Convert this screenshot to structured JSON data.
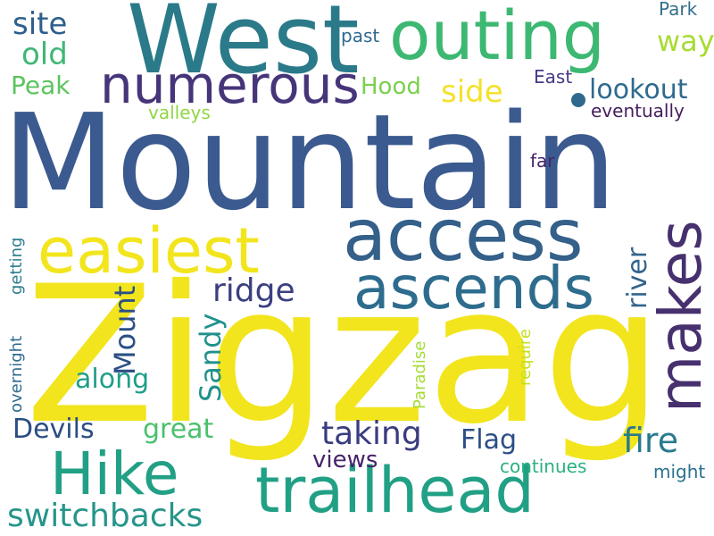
{
  "words": [
    {
      "text": "Mountain",
      "color": "#3b5a8f",
      "orientation": "horizontal"
    },
    {
      "text": "Zigzag",
      "color": "#f2e51e",
      "orientation": "horizontal"
    },
    {
      "text": "West",
      "color": "#2a7a8a",
      "orientation": "horizontal"
    },
    {
      "text": "outing",
      "color": "#3cb872",
      "orientation": "horizontal"
    },
    {
      "text": "numerous",
      "color": "#463579",
      "orientation": "horizontal"
    },
    {
      "text": "access",
      "color": "#34608a",
      "orientation": "horizontal"
    },
    {
      "text": "easiest",
      "color": "#f2e51e",
      "orientation": "horizontal"
    },
    {
      "text": "ascends",
      "color": "#2e6c8e",
      "orientation": "horizontal"
    },
    {
      "text": "makes",
      "color": "#46306e",
      "orientation": "vertical"
    },
    {
      "text": "Hike",
      "color": "#21a085",
      "orientation": "horizontal"
    },
    {
      "text": "trailhead",
      "color": "#21a085",
      "orientation": "horizontal"
    },
    {
      "text": "switchbacks",
      "color": "#26958b",
      "orientation": "horizontal"
    },
    {
      "text": "site",
      "color": "#2e5f8c",
      "orientation": "horizontal"
    },
    {
      "text": "old",
      "color": "#3fb776",
      "orientation": "horizontal"
    },
    {
      "text": "Peak",
      "color": "#5cc45f",
      "orientation": "horizontal"
    },
    {
      "text": "Hood",
      "color": "#7ad04e",
      "orientation": "horizontal"
    },
    {
      "text": "side",
      "color": "#f5e12b",
      "orientation": "horizontal"
    },
    {
      "text": "way",
      "color": "#a8db34",
      "orientation": "horizontal"
    },
    {
      "text": "lookout",
      "color": "#2f6a8e",
      "orientation": "horizontal"
    },
    {
      "text": "eventually",
      "color": "#451e5c",
      "orientation": "horizontal"
    },
    {
      "text": "East",
      "color": "#443a84",
      "orientation": "horizontal"
    },
    {
      "text": "Park",
      "color": "#33708d",
      "orientation": "horizontal"
    },
    {
      "text": "past",
      "color": "#2e6a8e",
      "orientation": "horizontal"
    },
    {
      "text": "valleys",
      "color": "#8fd744",
      "orientation": "horizontal"
    },
    {
      "text": "far",
      "color": "#46246a",
      "orientation": "horizontal"
    },
    {
      "text": "ridge",
      "color": "#3b3f80",
      "orientation": "horizontal"
    },
    {
      "text": "river",
      "color": "#33648d",
      "orientation": "vertical"
    },
    {
      "text": "Mount",
      "color": "#2b4f85",
      "orientation": "vertical"
    },
    {
      "text": "Sandy",
      "color": "#21918c",
      "orientation": "vertical"
    },
    {
      "text": "along",
      "color": "#1f9e89",
      "orientation": "horizontal"
    },
    {
      "text": "Devils",
      "color": "#2c4d84",
      "orientation": "horizontal"
    },
    {
      "text": "great",
      "color": "#4ac16d",
      "orientation": "horizontal"
    },
    {
      "text": "taking",
      "color": "#3a3c80",
      "orientation": "horizontal"
    },
    {
      "text": "Flag",
      "color": "#2b4f85",
      "orientation": "horizontal"
    },
    {
      "text": "views",
      "color": "#46226a",
      "orientation": "horizontal"
    },
    {
      "text": "fire",
      "color": "#2a7a8e",
      "orientation": "horizontal"
    },
    {
      "text": "continues",
      "color": "#2bb07f",
      "orientation": "horizontal"
    },
    {
      "text": "might",
      "color": "#2b728e",
      "orientation": "horizontal"
    },
    {
      "text": "overnight",
      "color": "#2e6b8e",
      "orientation": "vertical"
    },
    {
      "text": "getting",
      "color": "#2a7b8e",
      "orientation": "vertical"
    },
    {
      "text": "Paradise",
      "color": "#a5db36",
      "orientation": "vertical"
    },
    {
      "text": "require",
      "color": "#c5e021",
      "orientation": "vertical"
    }
  ]
}
